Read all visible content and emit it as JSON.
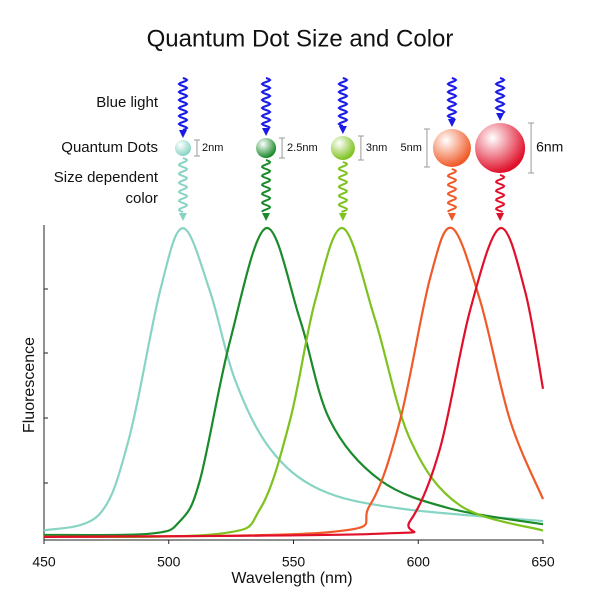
{
  "chart_data": {
    "type": "line",
    "title": "Quantum Dot Size and Color",
    "x_label": "Wavelength (nm)",
    "y_label": "Fluorescence",
    "row_labels": [
      "Blue light",
      "Quantum Dots",
      "Size dependent",
      "color"
    ],
    "xlim": [
      450,
      650
    ],
    "xticks": [
      450,
      500,
      550,
      600,
      650
    ],
    "ylim": [
      0,
      1
    ],
    "series": [
      {
        "color": "#88d4c4",
        "size_label": "2nm",
        "x": [
          450,
          472,
          484,
          496.5,
          505.7,
          516.5,
          526.5,
          540.6,
          560.6,
          592.7,
          650
        ],
        "values": [
          0.03,
          0.08,
          0.32,
          0.79,
          0.99,
          0.79,
          0.51,
          0.29,
          0.16,
          0.1,
          0.06
        ]
      },
      {
        "color": "#1a8a2a",
        "size_label": "2.5nm",
        "x": [
          450,
          492.5,
          504.5,
          512.5,
          524.5,
          539,
          552.6,
          564.6,
          584.7,
          612.7,
          650
        ],
        "values": [
          0.016,
          0.02,
          0.06,
          0.19,
          0.63,
          0.99,
          0.7,
          0.38,
          0.19,
          0.1,
          0.05
        ]
      },
      {
        "color": "#7dc21e",
        "size_label": "3nm",
        "x": [
          450,
          520.5,
          536.7,
          548.6,
          558.7,
          569.8,
          582.7,
          596.7,
          616.7,
          650
        ],
        "values": [
          0.01,
          0.02,
          0.1,
          0.38,
          0.76,
          0.99,
          0.7,
          0.32,
          0.11,
          0.03
        ]
      },
      {
        "color": "#f05a28",
        "size_label": "5nm",
        "x": [
          450,
          564.6,
          580.6,
          592.7,
          604.7,
          613.5,
          624.8,
          636.8,
          650
        ],
        "values": [
          0.01,
          0.025,
          0.11,
          0.38,
          0.83,
          0.99,
          0.76,
          0.38,
          0.13
        ]
      },
      {
        "color": "#e0102a",
        "size_label": "6nm",
        "x": [
          450,
          584.7,
          596.7,
          608.7,
          620.8,
          632.8,
          642.8,
          650
        ],
        "values": [
          0.01,
          0.02,
          0.06,
          0.29,
          0.73,
          0.99,
          0.79,
          0.48
        ]
      }
    ]
  }
}
